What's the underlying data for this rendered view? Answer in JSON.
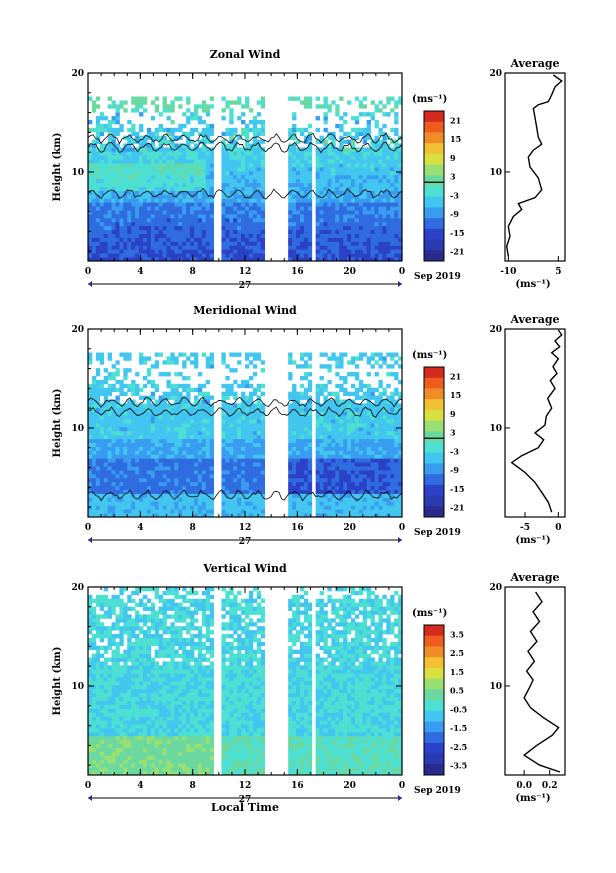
{
  "chart_data": [
    {
      "type": "heatmap",
      "title": "Zonal Wind",
      "ylabel": "Height (km)",
      "xlabel": "",
      "x_ticks": [
        "0",
        "4",
        "8",
        "12",
        "16",
        "20",
        "0"
      ],
      "y_ticks": [
        "10",
        "20"
      ],
      "date_label": "27",
      "month_label": "Sep 2019",
      "colorbar_unit": "(ms⁻¹)",
      "colorbar_ticks": [
        "21",
        "15",
        "9",
        "3",
        "-3",
        "-9",
        "-15",
        "-21"
      ],
      "colorbar_range": [
        -24,
        24
      ],
      "xlim": [
        0,
        24
      ],
      "ylim": [
        1,
        20
      ],
      "profile": {
        "title": "Average",
        "xlabel": "(ms⁻¹)",
        "x_ticks": [
          "-10",
          "5"
        ],
        "xlim": [
          -11,
          7
        ],
        "y_ticks": [
          "10",
          "20"
        ],
        "points": [
          [
            -10,
            1.5
          ],
          [
            -10.5,
            2.5
          ],
          [
            -9.5,
            3.5
          ],
          [
            -10,
            4.5
          ],
          [
            -8.5,
            5.5
          ],
          [
            -6,
            6.2
          ],
          [
            -7,
            6.8
          ],
          [
            -2,
            7.4
          ],
          [
            0,
            8.2
          ],
          [
            -1,
            9.4
          ],
          [
            -3.5,
            10.5
          ],
          [
            -4,
            11.5
          ],
          [
            -2.5,
            12.2
          ],
          [
            0,
            12.8
          ],
          [
            -1,
            13.5
          ],
          [
            -1.5,
            14.5
          ],
          [
            -2,
            15.5
          ],
          [
            -2.5,
            16.4
          ],
          [
            -1,
            16.8
          ],
          [
            2,
            17.1
          ],
          [
            3,
            17.8
          ],
          [
            4,
            18.6
          ],
          [
            6,
            19.2
          ],
          [
            3.5,
            19.8
          ]
        ]
      }
    },
    {
      "type": "heatmap",
      "title": "Meridional Wind",
      "ylabel": "Height (km)",
      "xlabel": "",
      "x_ticks": [
        "0",
        "4",
        "8",
        "12",
        "16",
        "20",
        "0"
      ],
      "y_ticks": [
        "10",
        "20"
      ],
      "date_label": "27",
      "month_label": "Sep 2019",
      "colorbar_unit": "(ms⁻¹)",
      "colorbar_ticks": [
        "21",
        "15",
        "9",
        "3",
        "-3",
        "-9",
        "-15",
        "-21"
      ],
      "colorbar_range": [
        -24,
        24
      ],
      "xlim": [
        0,
        24
      ],
      "ylim": [
        1,
        20
      ],
      "profile": {
        "title": "Average",
        "xlabel": "(ms⁻¹)",
        "x_ticks": [
          "-5",
          "0"
        ],
        "xlim": [
          -8,
          1
        ],
        "y_ticks": [
          "10",
          "20"
        ],
        "points": [
          [
            -1,
            1.5
          ],
          [
            -1.5,
            2.5
          ],
          [
            -2.5,
            3.5
          ],
          [
            -3.5,
            4.5
          ],
          [
            -5,
            5.5
          ],
          [
            -7,
            6.5
          ],
          [
            -5.5,
            7.2
          ],
          [
            -3,
            8
          ],
          [
            -2.2,
            8.8
          ],
          [
            -3.5,
            9.5
          ],
          [
            -2,
            10.3
          ],
          [
            -1.8,
            11.2
          ],
          [
            -1,
            12
          ],
          [
            -1.6,
            13
          ],
          [
            -0.5,
            14
          ],
          [
            -1.2,
            14.8
          ],
          [
            -0.2,
            15.5
          ],
          [
            -0.8,
            16.2
          ],
          [
            0,
            17
          ],
          [
            -1,
            17.6
          ],
          [
            0.2,
            18.2
          ],
          [
            -0.5,
            18.8
          ],
          [
            0.5,
            19.4
          ],
          [
            0,
            19.9
          ]
        ]
      }
    },
    {
      "type": "heatmap",
      "title": "Vertical Wind",
      "ylabel": "Height (km)",
      "xlabel": "Local Time",
      "x_ticks": [
        "0",
        "4",
        "8",
        "12",
        "16",
        "20",
        "0"
      ],
      "y_ticks": [
        "10",
        "20"
      ],
      "date_label": "27",
      "month_label": "Sep 2019",
      "colorbar_unit": "(ms⁻¹)",
      "colorbar_ticks": [
        "3.5",
        "2.5",
        "1.5",
        "0.5",
        "-0.5",
        "-1.5",
        "-2.5",
        "-3.5"
      ],
      "colorbar_range": [
        -4,
        4
      ],
      "xlim": [
        0,
        24
      ],
      "ylim": [
        1,
        20
      ],
      "profile": {
        "title": "Average",
        "xlabel": "(ms⁻¹)",
        "x_ticks": [
          "0.0",
          "0.2"
        ],
        "xlim": [
          -0.15,
          0.32
        ],
        "y_ticks": [
          "10",
          "20"
        ],
        "points": [
          [
            0.28,
            1.3
          ],
          [
            0.12,
            2.0
          ],
          [
            0.0,
            3.0
          ],
          [
            0.1,
            4.0
          ],
          [
            0.22,
            5.0
          ],
          [
            0.27,
            5.8
          ],
          [
            0.15,
            6.8
          ],
          [
            0.05,
            7.8
          ],
          [
            0.0,
            8.8
          ],
          [
            0.04,
            9.8
          ],
          [
            0.07,
            10.6
          ],
          [
            0.02,
            11.5
          ],
          [
            0.08,
            12.5
          ],
          [
            0.03,
            13.5
          ],
          [
            0.1,
            14.5
          ],
          [
            0.05,
            15.5
          ],
          [
            0.12,
            16.5
          ],
          [
            0.07,
            17.5
          ],
          [
            0.14,
            18.5
          ],
          [
            0.09,
            19.5
          ]
        ]
      }
    }
  ]
}
